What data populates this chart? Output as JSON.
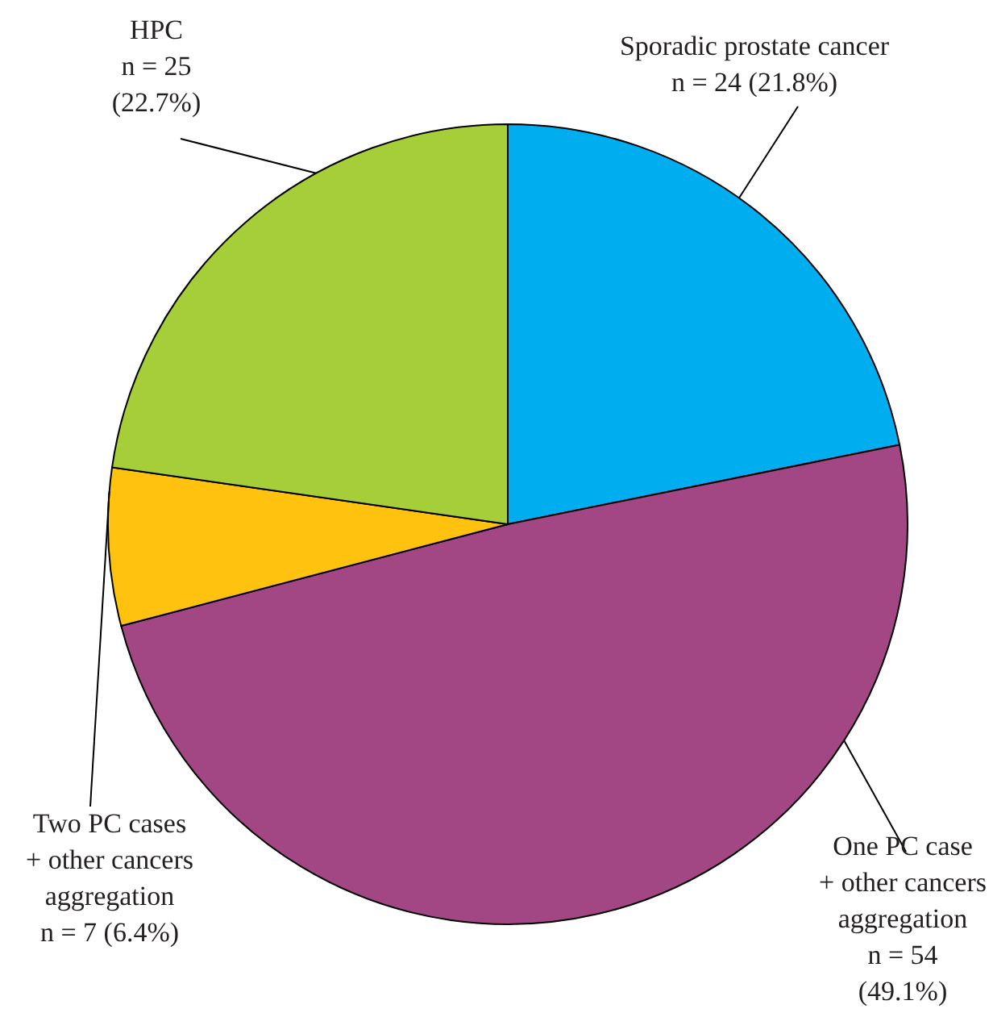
{
  "chart_data": {
    "type": "pie",
    "categories": [
      "Sporadic prostate cancer",
      "One PC case\n+ other cancers\naggregation",
      "Two PC cases\n+ other cancers\naggregation",
      "HPC"
    ],
    "values": [
      24,
      54,
      7,
      25
    ],
    "value_labels": [
      "n = 24 (21.8%)",
      "n = 54\n(49.1%)",
      "n = 7 (6.4%)",
      "n = 25\n(22.7%)"
    ],
    "colors": [
      "#00aeef",
      "#a24684",
      "#ffc20e",
      "#a6ce39"
    ]
  }
}
